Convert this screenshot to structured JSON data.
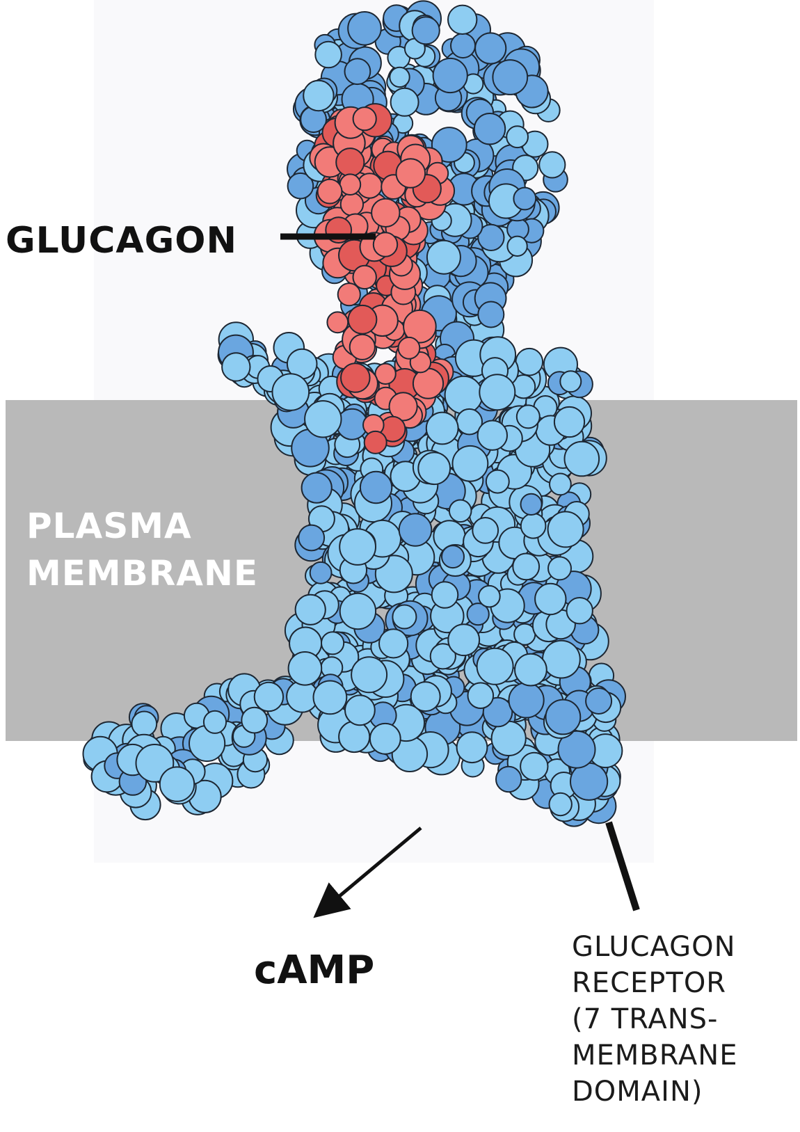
{
  "labels": {
    "glucagon": "GLUCAGON",
    "membrane": "PLASMA\nMEMBRANE",
    "camp": "cAMP",
    "receptor": "GLUCAGON\nRECEPTOR\n(7 TRANS-\nMEMBRANE\nDOMAIN)"
  },
  "colors": {
    "receptor": "#8ecdf2",
    "receptor_shade": "#6aa6e0",
    "glucagon": "#f27b78",
    "glucagon_shade": "#e25a58",
    "membrane": "#b9b9b9"
  }
}
